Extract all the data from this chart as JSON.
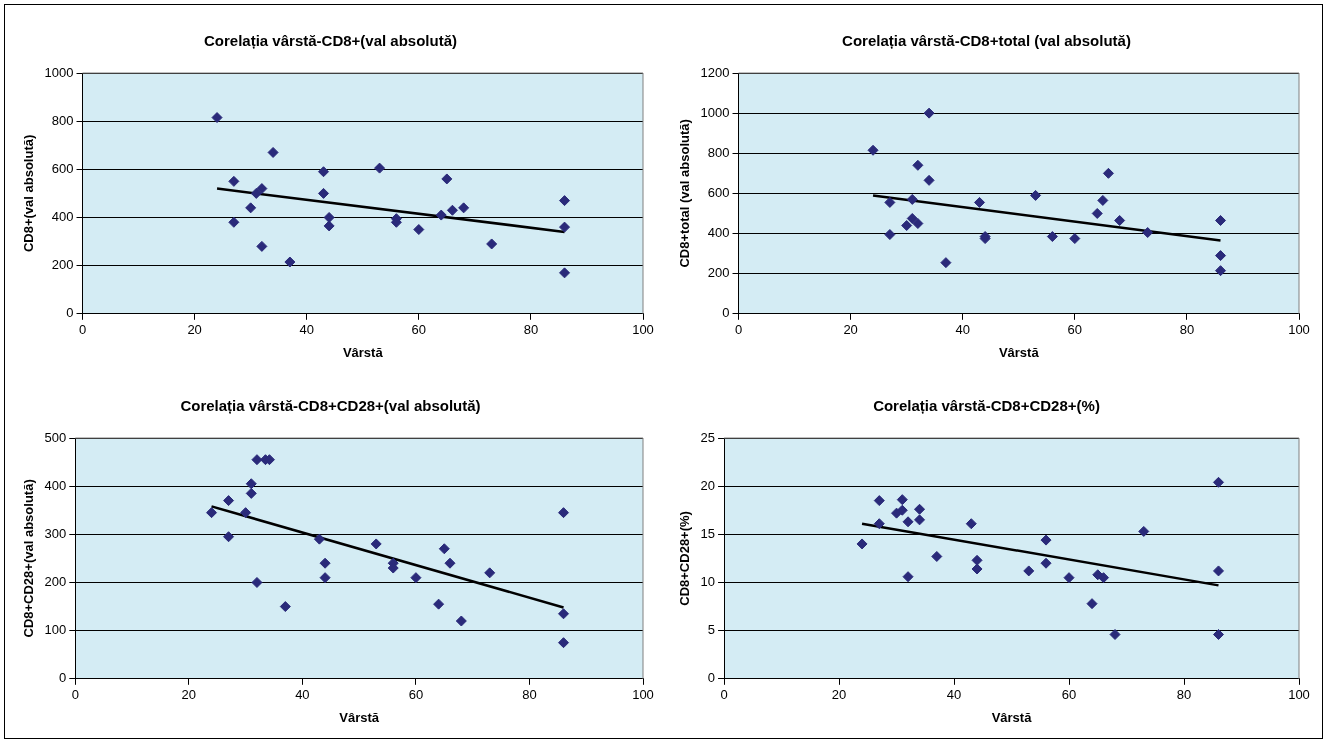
{
  "chart_data": [
    {
      "type": "scatter",
      "title": "Corelația vârstă-CD8+(val absolută)",
      "xlabel": "Vârstă",
      "ylabel": "CD8+(val absolută)",
      "xlim": [
        0,
        100
      ],
      "xticks": [
        0,
        20,
        40,
        60,
        80,
        100
      ],
      "ylim": [
        0,
        1000
      ],
      "yticks": [
        0,
        200,
        400,
        600,
        800,
        1000
      ],
      "grid": "y",
      "legend": false,
      "series": [
        {
          "marker": "diamond",
          "color": "#2a2a7a",
          "x": [
            24,
            27,
            27,
            30,
            31,
            32,
            32,
            34,
            37,
            43,
            43,
            44,
            44,
            53,
            56,
            56,
            60,
            64,
            65,
            66,
            68,
            73,
            86,
            86,
            86
          ],
          "values": [
            815,
            550,
            380,
            440,
            500,
            520,
            280,
            670,
            215,
            590,
            500,
            400,
            365,
            605,
            395,
            380,
            350,
            410,
            560,
            430,
            440,
            290,
            470,
            360,
            170
          ]
        },
        {
          "type": "line",
          "marker": "none",
          "color": "#000000",
          "x": [
            24,
            86
          ],
          "values": [
            520,
            340
          ]
        }
      ]
    },
    {
      "type": "scatter",
      "title": "Corelația vârstă-CD8+total (val absolută)",
      "xlabel": "Vârstă",
      "ylabel": "CD8+total (val absolută)",
      "xlim": [
        0,
        100
      ],
      "xticks": [
        0,
        20,
        40,
        60,
        80,
        100
      ],
      "ylim": [
        0,
        1200
      ],
      "yticks": [
        0,
        200,
        400,
        600,
        800,
        1000,
        1200
      ],
      "grid": "y",
      "legend": false,
      "series": [
        {
          "marker": "diamond",
          "color": "#2a2a7a",
          "x": [
            24,
            27,
            27,
            30,
            31,
            31,
            32,
            32,
            34,
            34,
            37,
            43,
            44,
            44,
            53,
            56,
            60,
            64,
            65,
            66,
            68,
            73,
            86,
            86,
            86
          ],
          "values": [
            815,
            555,
            395,
            440,
            475,
            570,
            450,
            740,
            665,
            1000,
            255,
            555,
            385,
            375,
            590,
            385,
            375,
            500,
            565,
            700,
            465,
            405,
            465,
            290,
            215
          ]
        },
        {
          "type": "line",
          "marker": "none",
          "color": "#000000",
          "x": [
            24,
            86
          ],
          "values": [
            590,
            365
          ]
        }
      ]
    },
    {
      "type": "scatter",
      "title": "Corelația vârstă-CD8+CD28+(val absolută)",
      "xlabel": "Vârstă",
      "ylabel": "CD8+CD28+(val absolută)",
      "xlim": [
        0,
        100
      ],
      "xticks": [
        0,
        20,
        40,
        60,
        80,
        100
      ],
      "ylim": [
        0,
        500
      ],
      "yticks": [
        0,
        100,
        200,
        300,
        400,
        500
      ],
      "grid": "y",
      "legend": false,
      "series": [
        {
          "color": "#2a2a7a",
          "x": [
            24,
            27,
            27,
            30,
            31,
            31,
            32,
            32,
            33.5,
            34.2,
            37,
            43,
            44,
            44,
            53,
            56,
            56,
            60,
            64,
            65,
            66,
            68,
            73,
            86,
            86,
            86
          ],
          "marker": "diamond",
          "values": [
            345,
            370,
            295,
            345,
            405,
            385,
            455,
            200,
            455,
            455,
            150,
            290,
            240,
            210,
            280,
            240,
            230,
            210,
            155,
            270,
            240,
            120,
            220,
            345,
            135,
            75
          ]
        },
        {
          "type": "line",
          "marker": "none",
          "color": "#000000",
          "x": [
            24,
            86
          ],
          "values": [
            358,
            148
          ]
        }
      ]
    },
    {
      "type": "scatter",
      "title": "Corelația vârstă-CD8+CD28+(%)",
      "xlabel": "Vârstă",
      "ylabel": "CD8+CD28+(%)",
      "xlim": [
        0,
        100
      ],
      "xticks": [
        0,
        20,
        40,
        60,
        80,
        100
      ],
      "ylim": [
        0,
        25
      ],
      "yticks": [
        0,
        5,
        10,
        15,
        20,
        25
      ],
      "grid": "y",
      "legend": false,
      "series": [
        {
          "color": "#2a2a7a",
          "x": [
            24,
            27,
            27,
            30,
            31,
            31,
            32,
            32,
            34,
            34,
            37,
            43,
            44,
            44,
            53,
            56,
            56,
            60,
            64,
            65,
            66,
            68,
            73,
            86,
            86,
            86
          ],
          "marker": "diamond",
          "values": [
            14,
            18.5,
            16.1,
            17.2,
            18.6,
            17.5,
            16.3,
            10.6,
            17.6,
            16.5,
            12.7,
            16.1,
            12.3,
            11.4,
            11.2,
            14.4,
            12,
            10.5,
            7.8,
            10.8,
            10.5,
            4.6,
            15.3,
            20.4,
            11.2,
            4.6
          ]
        },
        {
          "type": "line",
          "marker": "none",
          "color": "#000000",
          "x": [
            24,
            86
          ],
          "values": [
            16.1,
            9.7
          ]
        }
      ]
    }
  ]
}
